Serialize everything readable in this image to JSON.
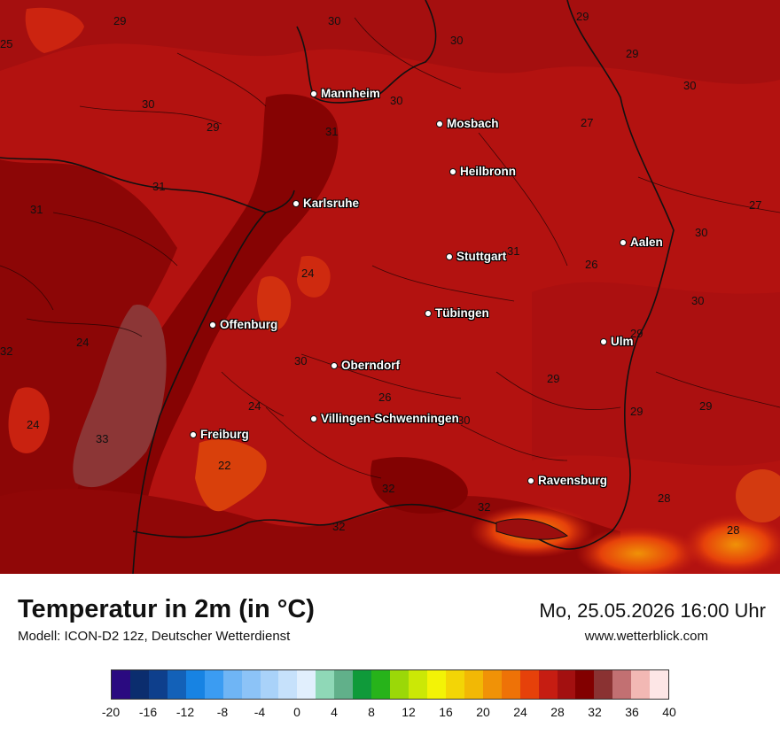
{
  "map": {
    "cities": [
      {
        "id": "mannheim",
        "name": "Mannheim"
      },
      {
        "id": "mosbach",
        "name": "Mosbach"
      },
      {
        "id": "heilbronn",
        "name": "Heilbronn"
      },
      {
        "id": "karlsruhe",
        "name": "Karlsruhe"
      },
      {
        "id": "aalen",
        "name": "Aalen"
      },
      {
        "id": "stuttgart",
        "name": "Stuttgart"
      },
      {
        "id": "tuebingen",
        "name": "Tübingen"
      },
      {
        "id": "offenburg",
        "name": "Offenburg"
      },
      {
        "id": "ulm",
        "name": "Ulm"
      },
      {
        "id": "oberndorf",
        "name": "Oberndorf"
      },
      {
        "id": "villingen",
        "name": "Villingen-Schwenningen"
      },
      {
        "id": "freiburg",
        "name": "Freiburg"
      },
      {
        "id": "ravensburg",
        "name": "Ravensburg"
      }
    ],
    "temperature_labels": [
      "29",
      "30",
      "29",
      "25",
      "30",
      "30",
      "29",
      "30",
      "27",
      "29",
      "31",
      "30",
      "31",
      "31",
      "27",
      "30",
      "24",
      "26",
      "30",
      "31",
      "24",
      "32",
      "30",
      "29",
      "29",
      "24",
      "26",
      "30",
      "29",
      "29",
      "24",
      "33",
      "22",
      "32",
      "32",
      "32",
      "28",
      "28"
    ]
  },
  "footer": {
    "title": "Temperatur in 2m (in °C)",
    "model": "Modell: ICON-D2 12z, Deutscher Wetterdienst",
    "datetime": "Mo, 25.05.2026 16:00 Uhr",
    "website": "www.wetterblick.com"
  },
  "legend": {
    "min": -20,
    "max": 40,
    "step": 2,
    "colors": [
      "#2a0a80",
      "#0b2d6e",
      "#0e3f8c",
      "#1361b8",
      "#1783e3",
      "#3b9cf2",
      "#6fb5f5",
      "#8cc3f7",
      "#a9d2f9",
      "#c6e1fb",
      "#e1effd",
      "#8fd8b7",
      "#61b08a",
      "#0f9a3a",
      "#27b31a",
      "#9bd808",
      "#cbe806",
      "#f3f306",
      "#f3d506",
      "#f2b805",
      "#f09207",
      "#ee7207",
      "#e6410a",
      "#c61d12",
      "#a31010",
      "#820000",
      "#8a3232",
      "#c27072",
      "#f2b8b4",
      "#fde6e6"
    ],
    "tick_labels": [
      "-20",
      "-16",
      "-12",
      "-8",
      "-4",
      "0",
      "4",
      "8",
      "12",
      "16",
      "20",
      "24",
      "28",
      "32",
      "36",
      "40"
    ]
  }
}
